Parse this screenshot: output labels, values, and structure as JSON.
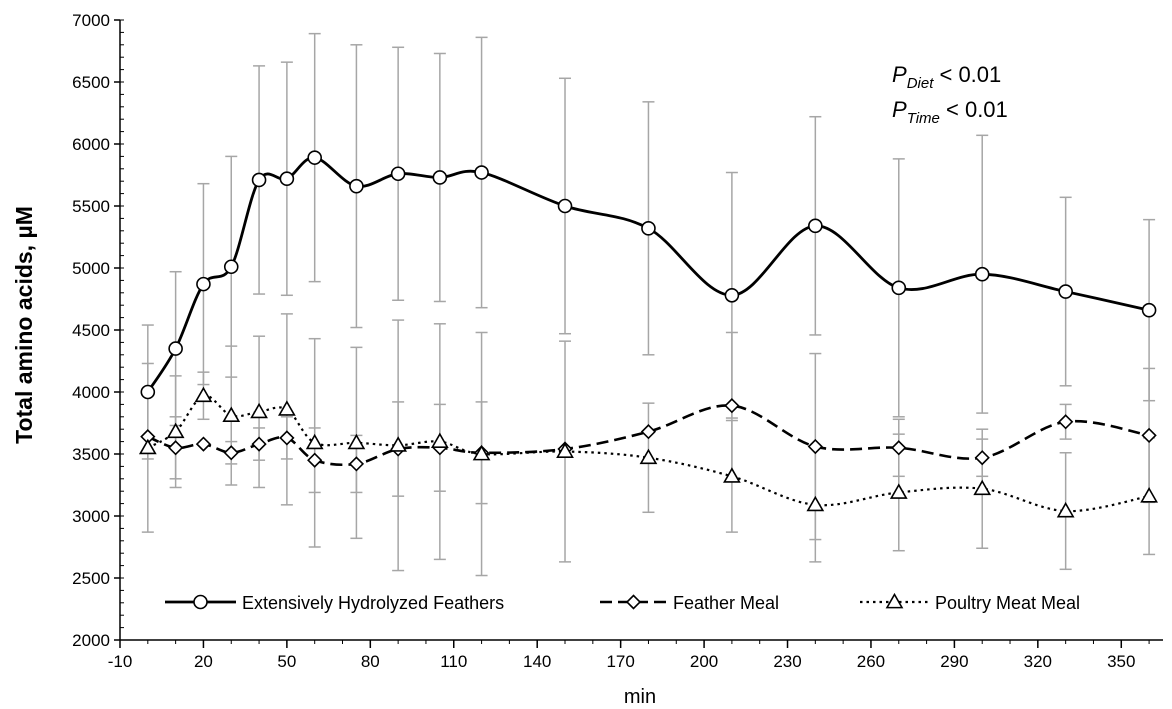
{
  "chart_data": {
    "type": "line",
    "xlabel": "min",
    "ylabel": "Total amino acids, µM",
    "xlim": [
      -10,
      365
    ],
    "ylim": [
      2000,
      7000
    ],
    "x_ticks": [
      -10,
      20,
      50,
      80,
      110,
      140,
      170,
      200,
      230,
      260,
      290,
      320,
      350
    ],
    "y_ticks": [
      2000,
      2500,
      3000,
      3500,
      4000,
      4500,
      5000,
      5500,
      6000,
      6500,
      7000
    ],
    "x_minor_step": 10,
    "y_minor_step": 100,
    "grid": false,
    "legend_position": "bottom",
    "annotations": [
      {
        "id": "diet",
        "p": "P",
        "sub": "Diet",
        "rest": " < 0.01"
      },
      {
        "id": "time",
        "p": "P",
        "sub": "Time",
        "rest": " < 0.01"
      }
    ],
    "series": [
      {
        "name": "Extensively Hydrolyzed Feathers",
        "line_style": "solid",
        "marker": "circle",
        "x": [
          0,
          10,
          20,
          30,
          40,
          50,
          60,
          75,
          90,
          105,
          120,
          150,
          180,
          210,
          240,
          270,
          300,
          330,
          360
        ],
        "values": [
          4000,
          4350,
          4870,
          5010,
          5710,
          5720,
          5890,
          5660,
          5760,
          5730,
          5770,
          5500,
          5320,
          4780,
          5340,
          4840,
          4950,
          4810,
          4660
        ],
        "error": [
          540,
          620,
          810,
          890,
          920,
          940,
          1000,
          1140,
          1020,
          1000,
          1090,
          1030,
          1020,
          990,
          880,
          1040,
          1120,
          760,
          730
        ]
      },
      {
        "name": "Feather Meal",
        "line_style": "dashed",
        "marker": "diamond",
        "x": [
          0,
          10,
          20,
          30,
          40,
          50,
          60,
          75,
          90,
          105,
          120,
          150,
          180,
          210,
          240,
          270,
          300,
          330,
          360
        ],
        "values": [
          3640,
          3550,
          3580,
          3510,
          3580,
          3630,
          3450,
          3420,
          3540,
          3550,
          3510,
          3540,
          3680,
          3890,
          3560,
          3550,
          3470,
          3760,
          3650
        ],
        "error": [
          0,
          250,
          0,
          90,
          130,
          170,
          260,
          230,
          380,
          350,
          410,
          0,
          0,
          590,
          750,
          230,
          150,
          140,
          540
        ]
      },
      {
        "name": "Poultry Meat Meal",
        "line_style": "dotted",
        "marker": "triangle",
        "x": [
          0,
          10,
          20,
          30,
          40,
          50,
          60,
          75,
          90,
          105,
          120,
          150,
          180,
          210,
          240,
          270,
          300,
          330,
          360
        ],
        "values": [
          3550,
          3680,
          3970,
          3810,
          3840,
          3860,
          3590,
          3590,
          3570,
          3600,
          3500,
          3520,
          3470,
          3320,
          3090,
          3190,
          3220,
          3040,
          3160
        ],
        "error": [
          680,
          450,
          190,
          560,
          610,
          770,
          840,
          770,
          1010,
          950,
          980,
          890,
          440,
          450,
          460,
          470,
          480,
          470,
          470
        ]
      }
    ]
  }
}
